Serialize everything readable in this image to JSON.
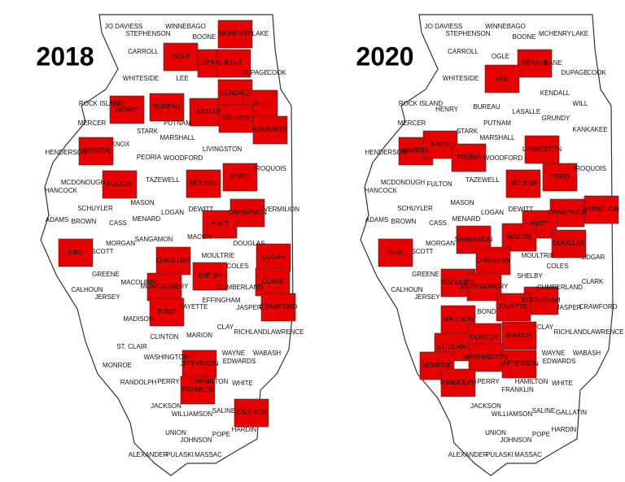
{
  "counties": [
    "JO DAVIESS",
    "STEPHENSON",
    "WINNEBAGO",
    "BOONE",
    "MCHENRY",
    "LAKE",
    "CARROLL",
    "OGLE",
    "DEKALB",
    "KANE",
    "DUPAGE",
    "COOK",
    "WHITESIDE",
    "LEE",
    "ROCK ISLAND",
    "HENRY",
    "BUREAU",
    "LASALLE",
    "KENDALL",
    "WILL",
    "GRUNDY",
    "PUTNAM",
    "MERCER",
    "STARK",
    "MARSHALL",
    "KANKAKEE",
    "HENDERSON",
    "WARREN",
    "KNOX",
    "PEORIA",
    "LIVINGSTON",
    "WOODFORD",
    "IROQUOIS",
    "MCDONOUGH",
    "FULTON",
    "TAZEWELL",
    "MCLEAN",
    "FORD",
    "HANCOCK",
    "MASON",
    "SCHUYLER",
    "DEWITT",
    "VERMILION",
    "CHAMPAIGN",
    "LOGAN",
    "ADAMS",
    "BROWN",
    "CASS",
    "MENARD",
    "PIATT",
    "MORGAN",
    "SANGAMON",
    "MACON",
    "DOUGLAS",
    "SCOTT",
    "PIKE",
    "MOULTRIE",
    "EDGAR",
    "CHRISTIAN",
    "COLES",
    "GREENE",
    "MACOUPIN",
    "SHELBY",
    "CLARK",
    "MONTGOMERY",
    "CUMBERLAND",
    "CALHOUN",
    "JERSEY",
    "EFFINGHAM",
    "FAYETTE",
    "BOND",
    "JASPER",
    "CRAWFORD",
    "MADISON",
    "CLINTON",
    "MARION",
    "CLAY",
    "RICHLAND",
    "LAWRENCE",
    "ST. CLAIR",
    "WASHINGTON",
    "JEFFERSON",
    "WAYNE",
    "EDWARDS",
    "WABASH",
    "MONROE",
    "RANDOLPH",
    "PERRY",
    "HAMILTON",
    "WHITE",
    "FRANKLIN",
    "JACKSON",
    "WILLIAMSON",
    "SALINE",
    "GALLATIN",
    "HARDIN",
    "UNION",
    "POPE",
    "JOHNSON",
    "ALEXANDER",
    "PULASKI",
    "MASSAC"
  ],
  "maps": [
    {
      "title": "2018",
      "highlight_color": "#e60000",
      "highlighted": [
        "MCHENRY",
        "OGLE",
        "DEKALB",
        "KANE",
        "LASALLE",
        "KENDALL",
        "WILL",
        "GRUNDY",
        "HENRY",
        "BUREAU",
        "KANKAKEE",
        "WARREN",
        "FULTON",
        "MCLEAN",
        "FORD",
        "CHAMPAIGN",
        "PIATT",
        "PIKE",
        "CHRISTIAN",
        "SHELBY",
        "EDGAR",
        "CLARK",
        "CRAWFORD",
        "MONTGOMERY",
        "BOND",
        "JEFFERSON",
        "FRANKLIN",
        "GALLATIN"
      ]
    },
    {
      "title": "2020",
      "highlight_color": "#e60000",
      "highlighted": [
        "LEE",
        "DEKALB",
        "WARREN",
        "KNOX",
        "PEORIA",
        "LIVINGSTON",
        "MCLEAN",
        "FORD",
        "CHAMPAIGN",
        "VERMILION",
        "PIATT",
        "DOUGLAS",
        "MACON",
        "SANGAMON",
        "CHRISTIAN",
        "PIKE",
        "MACOUPIN",
        "MONTGOMERY",
        "FAYETTE",
        "EFFINGHAM",
        "MADISON",
        "ST. CLAIR",
        "CLINTON",
        "MARION",
        "WASHINGTON",
        "JEFFERSON",
        "MONROE",
        "RANDOLPH"
      ]
    }
  ]
}
